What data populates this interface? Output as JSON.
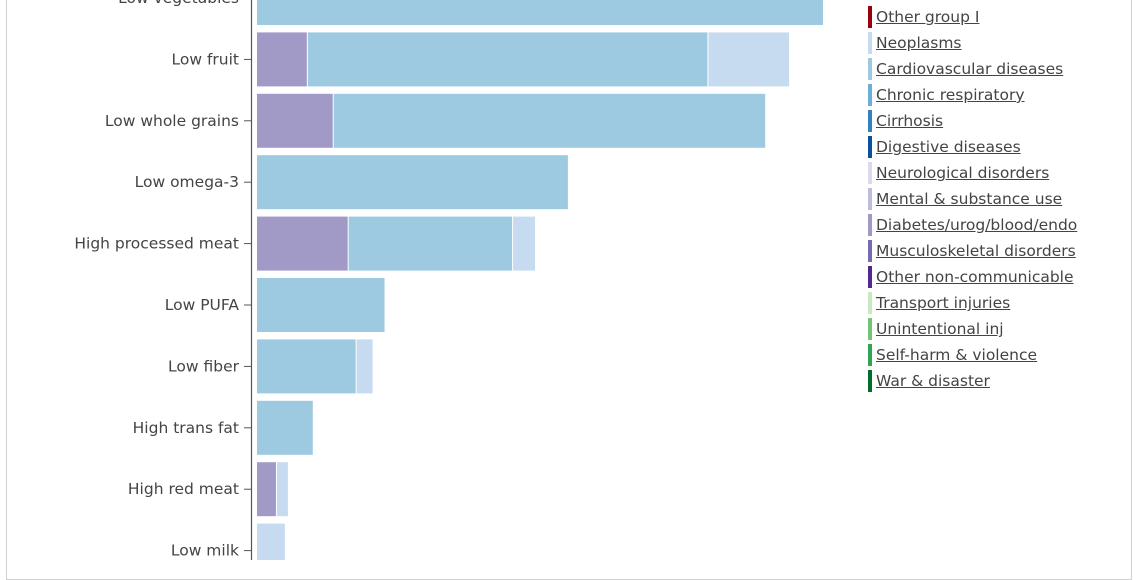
{
  "chart_data": {
    "type": "bar",
    "orientation": "horizontal",
    "stacked": true,
    "categories": [
      "Low vegetables",
      "Low fruit",
      "Low whole grains",
      "Low omega-3",
      "High processed meat",
      "Low PUFA",
      "Low fiber",
      "High trans fat",
      "High red meat",
      "Low milk"
    ],
    "series": [
      {
        "name": "Diabetes/urog/blood/endo",
        "color": "#a29ac6",
        "values": [
          0,
          51,
          77,
          0,
          92,
          0,
          0,
          0,
          20,
          0
        ]
      },
      {
        "name": "Cardiovascular diseases",
        "color": "#9ecae1",
        "values": [
          569,
          402,
          434,
          313,
          165,
          129,
          100,
          57,
          0,
          0
        ]
      },
      {
        "name": "Neoplasms",
        "color": "#c6dbef",
        "values": [
          0,
          82,
          0,
          0,
          23,
          0,
          17,
          0,
          12,
          29
        ]
      }
    ],
    "legend": {
      "placement": "right",
      "entries": [
        {
          "name": "Other group I",
          "color": "#99000d"
        },
        {
          "name": "Neoplasms",
          "color": "#c6dbef"
        },
        {
          "name": "Cardiovascular diseases",
          "color": "#9ecae1"
        },
        {
          "name": "Chronic respiratory",
          "color": "#6baed6"
        },
        {
          "name": "Cirrhosis",
          "color": "#3182bd"
        },
        {
          "name": "Digestive diseases",
          "color": "#08519c"
        },
        {
          "name": "Neurological disorders",
          "color": "#dadaeb"
        },
        {
          "name": "Mental & substance use",
          "color": "#bcbddc"
        },
        {
          "name": "Diabetes/urog/blood/endo",
          "color": "#9e9ac8"
        },
        {
          "name": "Musculoskeletal disorders",
          "color": "#756bb1"
        },
        {
          "name": "Other non-communicable",
          "color": "#54278f"
        },
        {
          "name": "Transport injuries",
          "color": "#c7e9c0"
        },
        {
          "name": "Unintentional inj",
          "color": "#74c476"
        },
        {
          "name": "Self-harm & violence",
          "color": "#31a354"
        },
        {
          "name": "War & disaster",
          "color": "#006d2c"
        }
      ]
    },
    "xlim": [
      0,
      570
    ],
    "grid": false,
    "title": "",
    "xlabel": "",
    "ylabel": ""
  }
}
